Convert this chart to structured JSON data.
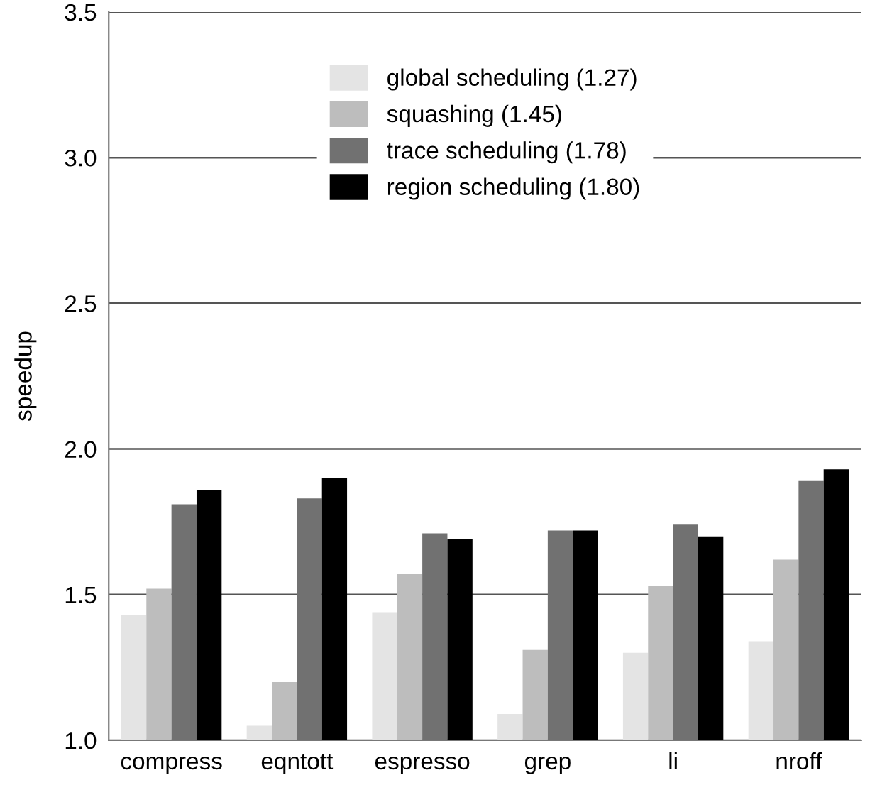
{
  "chart_data": {
    "type": "bar",
    "ylabel": "speedup",
    "categories": [
      "compress",
      "eqntott",
      "espresso",
      "grep",
      "li",
      "nroff"
    ],
    "series": [
      {
        "name": "global scheduling (1.27)",
        "color": "#e4e4e4",
        "values": [
          1.43,
          1.05,
          1.44,
          1.09,
          1.3,
          1.34
        ]
      },
      {
        "name": "squashing (1.45)",
        "color": "#bdbdbd",
        "values": [
          1.52,
          1.2,
          1.57,
          1.31,
          1.53,
          1.62
        ]
      },
      {
        "name": "trace scheduling (1.78)",
        "color": "#717171",
        "values": [
          1.81,
          1.83,
          1.71,
          1.72,
          1.74,
          1.89
        ]
      },
      {
        "name": "region scheduling (1.80)",
        "color": "#000000",
        "values": [
          1.86,
          1.9,
          1.69,
          1.72,
          1.7,
          1.93
        ]
      }
    ],
    "ylim": [
      1.0,
      3.5
    ],
    "yticks": [
      {
        "value": 1.0,
        "label": "1.0"
      },
      {
        "value": 1.5,
        "label": "1.5"
      },
      {
        "value": 2.0,
        "label": "2.0"
      },
      {
        "value": 2.5,
        "label": "2.5"
      },
      {
        "value": 3.0,
        "label": "3.0"
      },
      {
        "value": 3.5,
        "label": "3.5"
      }
    ],
    "grid": "y",
    "legend": "top"
  }
}
